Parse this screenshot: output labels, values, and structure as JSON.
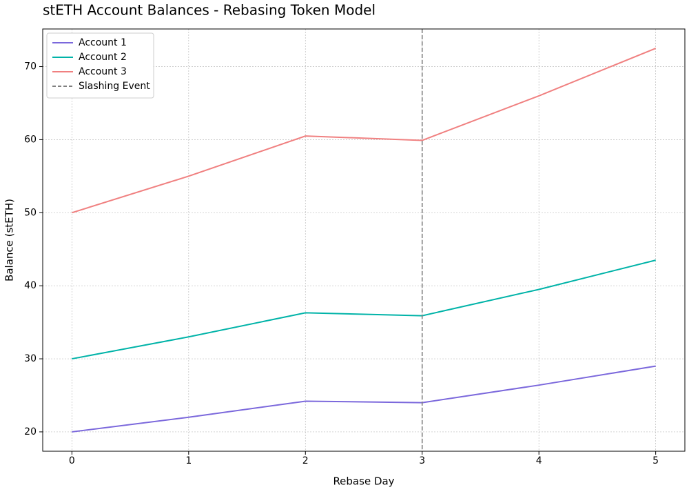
{
  "chart_data": {
    "type": "line",
    "title": "stETH Account Balances - Rebasing Token Model",
    "x_label": "Rebase Day",
    "y_label": "Balance (stETH)",
    "x": [
      0,
      1,
      2,
      3,
      4,
      5
    ],
    "series": [
      {
        "name": "Account 1",
        "color": "#7b68dc",
        "values": [
          20,
          22,
          24.2,
          24,
          26.4,
          29
        ]
      },
      {
        "name": "Account 2",
        "color": "#00b3a8",
        "values": [
          30,
          33,
          36.3,
          35.9,
          39.5,
          43.5
        ]
      },
      {
        "name": "Account 3",
        "color": "#f08080",
        "values": [
          50,
          55,
          60.5,
          59.9,
          66,
          72.5
        ]
      }
    ],
    "vline": {
      "name": "Slashing Event",
      "x": 3,
      "color": "#808080"
    },
    "xlim": [
      -0.25,
      5.25
    ],
    "ylim": [
      17.35,
      75.15
    ],
    "xticks": [
      0,
      1,
      2,
      3,
      4,
      5
    ],
    "yticks": [
      20,
      30,
      40,
      50,
      60,
      70
    ],
    "grid": true,
    "legend": "upper-left"
  }
}
